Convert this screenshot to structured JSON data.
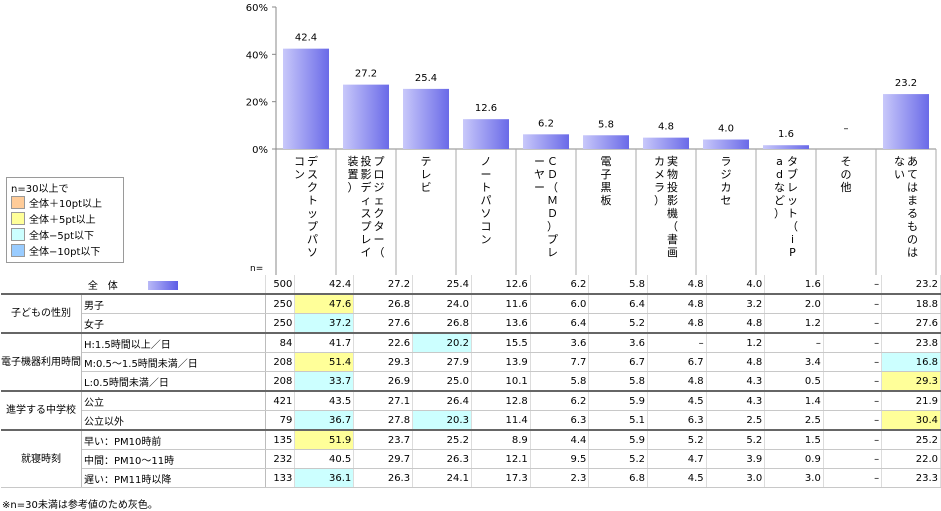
{
  "chart_data": {
    "type": "bar",
    "categories": [
      "デスクトップパソコン",
      "プロジェクター（投影ディスプレイ装置）",
      "テレビ",
      "ノートパソコン",
      "ＣＤ（ＭＤ）プレーヤー",
      "電子黒板",
      "実物投影機（書画カメラ）",
      "ラジカセ",
      "タブレット（iPadなど）",
      "その他",
      "あてはまるものはない"
    ],
    "values": [
      42.4,
      27.2,
      25.4,
      12.6,
      6.2,
      5.8,
      4.8,
      4.0,
      1.6,
      null,
      23.2
    ],
    "value_labels": [
      "42.4",
      "27.2",
      "25.4",
      "12.6",
      "6.2",
      "5.8",
      "4.8",
      "4.0",
      "1.6",
      "–",
      "23.2"
    ],
    "ylim": [
      0,
      60
    ],
    "yticks": [
      "0%",
      "20%",
      "40%",
      "60%"
    ],
    "colors": {
      "bar_light": "#c8c8fa",
      "bar_dark": "#6a6ae8",
      "grid": "#888888"
    }
  },
  "legend": {
    "title": "n=30以上で",
    "items": [
      {
        "label": "全体＋10pt以上",
        "color": "#ffcc99"
      },
      {
        "label": "全体＋5pt以上",
        "color": "#ffff99"
      },
      {
        "label": "全体−5pt以下",
        "color": "#ccffff"
      },
      {
        "label": "全体−10pt以下",
        "color": "#99ccff"
      }
    ]
  },
  "n_label": "n=",
  "table": {
    "rows": [
      {
        "group": "",
        "label": "全　体",
        "n": "500",
        "values": [
          "42.4",
          "27.2",
          "25.4",
          "12.6",
          "6.2",
          "5.8",
          "4.8",
          "4.0",
          "1.6",
          "–",
          "23.2"
        ],
        "hl": {}
      },
      {
        "group": "子どもの性別",
        "label": "男子",
        "n": "250",
        "values": [
          "47.6",
          "26.8",
          "24.0",
          "11.6",
          "6.0",
          "6.4",
          "4.8",
          "3.2",
          "2.0",
          "–",
          "18.8"
        ],
        "hl": {
          "0": "y"
        }
      },
      {
        "group": "",
        "label": "女子",
        "n": "250",
        "values": [
          "37.2",
          "27.6",
          "26.8",
          "13.6",
          "6.4",
          "5.2",
          "4.8",
          "4.8",
          "1.2",
          "–",
          "27.6"
        ],
        "hl": {
          "0": "c"
        }
      },
      {
        "group": "電子機器利用時間",
        "label": "H:1.5時間以上／日",
        "n": "84",
        "values": [
          "41.7",
          "22.6",
          "20.2",
          "15.5",
          "3.6",
          "3.6",
          "–",
          "1.2",
          "–",
          "–",
          "23.8"
        ],
        "hl": {
          "2": "c"
        }
      },
      {
        "group": "",
        "label": "M:0.5〜1.5時間未満／日",
        "n": "208",
        "values": [
          "51.4",
          "29.3",
          "27.9",
          "13.9",
          "7.7",
          "6.7",
          "6.7",
          "4.8",
          "3.4",
          "–",
          "16.8"
        ],
        "hl": {
          "0": "y",
          "10": "c"
        }
      },
      {
        "group": "",
        "label": "L:0.5時間未満／日",
        "n": "208",
        "values": [
          "33.7",
          "26.9",
          "25.0",
          "10.1",
          "5.8",
          "5.8",
          "4.8",
          "4.3",
          "0.5",
          "–",
          "29.3"
        ],
        "hl": {
          "0": "c",
          "10": "y"
        }
      },
      {
        "group": "進学する中学校",
        "label": "公立",
        "n": "421",
        "values": [
          "43.5",
          "27.1",
          "26.4",
          "12.8",
          "6.2",
          "5.9",
          "4.5",
          "4.3",
          "1.4",
          "–",
          "21.9"
        ],
        "hl": {}
      },
      {
        "group": "",
        "label": "公立以外",
        "n": "79",
        "values": [
          "36.7",
          "27.8",
          "20.3",
          "11.4",
          "6.3",
          "5.1",
          "6.3",
          "2.5",
          "2.5",
          "–",
          "30.4"
        ],
        "hl": {
          "0": "c",
          "2": "c",
          "10": "y"
        }
      },
      {
        "group": "就寝時刻",
        "label": "早い：PM10時前",
        "n": "135",
        "values": [
          "51.9",
          "23.7",
          "25.2",
          "8.9",
          "4.4",
          "5.9",
          "5.2",
          "5.2",
          "1.5",
          "–",
          "25.2"
        ],
        "hl": {
          "0": "y"
        }
      },
      {
        "group": "",
        "label": "中間：PM10〜11時",
        "n": "232",
        "values": [
          "40.5",
          "29.7",
          "26.3",
          "12.1",
          "9.5",
          "5.2",
          "4.7",
          "3.9",
          "0.9",
          "–",
          "22.0"
        ],
        "hl": {}
      },
      {
        "group": "",
        "label": "遅い：PM11時以降",
        "n": "133",
        "values": [
          "36.1",
          "26.3",
          "24.1",
          "17.3",
          "2.3",
          "6.8",
          "4.5",
          "3.0",
          "3.0",
          "–",
          "23.3"
        ],
        "hl": {
          "0": "c"
        }
      }
    ]
  },
  "group_labels": {
    "g1": "子どもの性別",
    "g2": "電子機器利用時間",
    "g3": "進学する中学校",
    "g4": "就寝時刻"
  },
  "footnote": "※n=30未満は参考値のため灰色。"
}
